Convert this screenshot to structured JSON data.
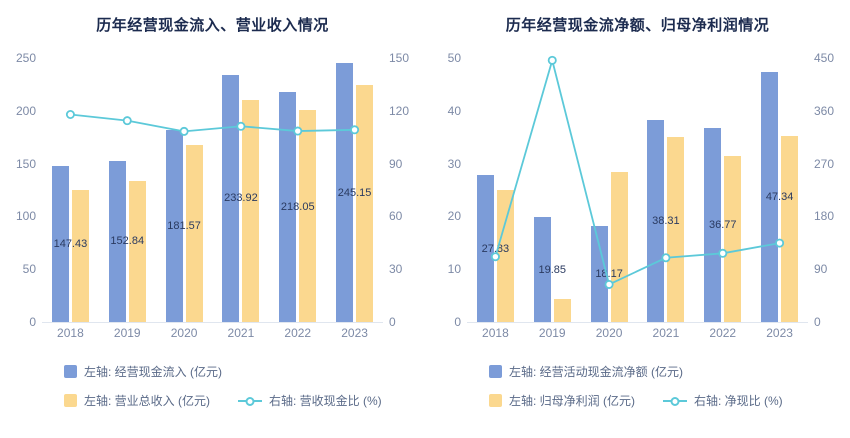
{
  "page": {
    "background": "#ffffff"
  },
  "colors": {
    "bar_blue": "#7c9cd8",
    "bar_orange": "#fbd88f",
    "line_cyan": "#5cc9d9",
    "title_text": "#1c2b4f",
    "axis_text": "#7d8aa6",
    "label_text": "#2a3a60"
  },
  "chart_data": [
    {
      "type": "bar+line",
      "title": "历年经营现金流入、营业收入情况",
      "categories": [
        "2018",
        "2019",
        "2020",
        "2021",
        "2022",
        "2023"
      ],
      "left_axis": {
        "min": 0,
        "max": 250,
        "ticks": [
          0,
          50,
          100,
          150,
          200,
          250
        ]
      },
      "right_axis": {
        "min": 0,
        "max": 150,
        "ticks": [
          0,
          30,
          60,
          90,
          120,
          150
        ]
      },
      "grid": false,
      "legend_position": "bottom-left",
      "series": [
        {
          "name": "左轴: 经营现金流入 (亿元)",
          "type": "bar",
          "axis": "left",
          "color": "#7c9cd8",
          "show_labels": true,
          "values": [
            147.43,
            152.84,
            181.57,
            233.92,
            218.05,
            245.15
          ],
          "labels": [
            "147.43",
            "152.84",
            "181.57",
            "233.92",
            "218.05",
            "245.15"
          ]
        },
        {
          "name": "左轴: 营业总收入 (亿元)",
          "type": "bar",
          "axis": "left",
          "color": "#fbd88f",
          "show_labels": false,
          "values": [
            125.0,
            133.6,
            167.7,
            210.3,
            200.9,
            224.5
          ]
        },
        {
          "name": "右轴: 营收现金比 (%)",
          "type": "line",
          "axis": "right",
          "color": "#5cc9d9",
          "show_labels": false,
          "values": [
            117.9,
            114.4,
            108.3,
            111.2,
            108.5,
            109.2
          ]
        }
      ]
    },
    {
      "type": "bar+line",
      "title": "历年经营现金流净额、归母净利润情况",
      "categories": [
        "2018",
        "2019",
        "2020",
        "2021",
        "2022",
        "2023"
      ],
      "left_axis": {
        "min": 0,
        "max": 50,
        "ticks": [
          0,
          10,
          20,
          30,
          40,
          50
        ]
      },
      "right_axis": {
        "min": 0,
        "max": 450,
        "ticks": [
          0,
          90,
          180,
          270,
          360,
          450
        ]
      },
      "grid": false,
      "legend_position": "bottom-left",
      "series": [
        {
          "name": "左轴: 经营活动现金流净额 (亿元)",
          "type": "bar",
          "axis": "left",
          "color": "#7c9cd8",
          "show_labels": true,
          "values": [
            27.83,
            19.85,
            18.17,
            38.31,
            36.77,
            47.34
          ],
          "labels": [
            "27.83",
            "19.85",
            "18.17",
            "38.31",
            "36.77",
            "47.34"
          ]
        },
        {
          "name": "左轴: 归母净利润 (亿元)",
          "type": "bar",
          "axis": "left",
          "color": "#fbd88f",
          "show_labels": false,
          "values": [
            25.0,
            4.45,
            28.4,
            35.0,
            31.4,
            35.2
          ]
        },
        {
          "name": "右轴: 净现比 (%)",
          "type": "line",
          "axis": "right",
          "color": "#5cc9d9",
          "show_labels": false,
          "values": [
            111.3,
            446.0,
            64.0,
            109.5,
            117.1,
            134.5
          ]
        }
      ]
    }
  ]
}
